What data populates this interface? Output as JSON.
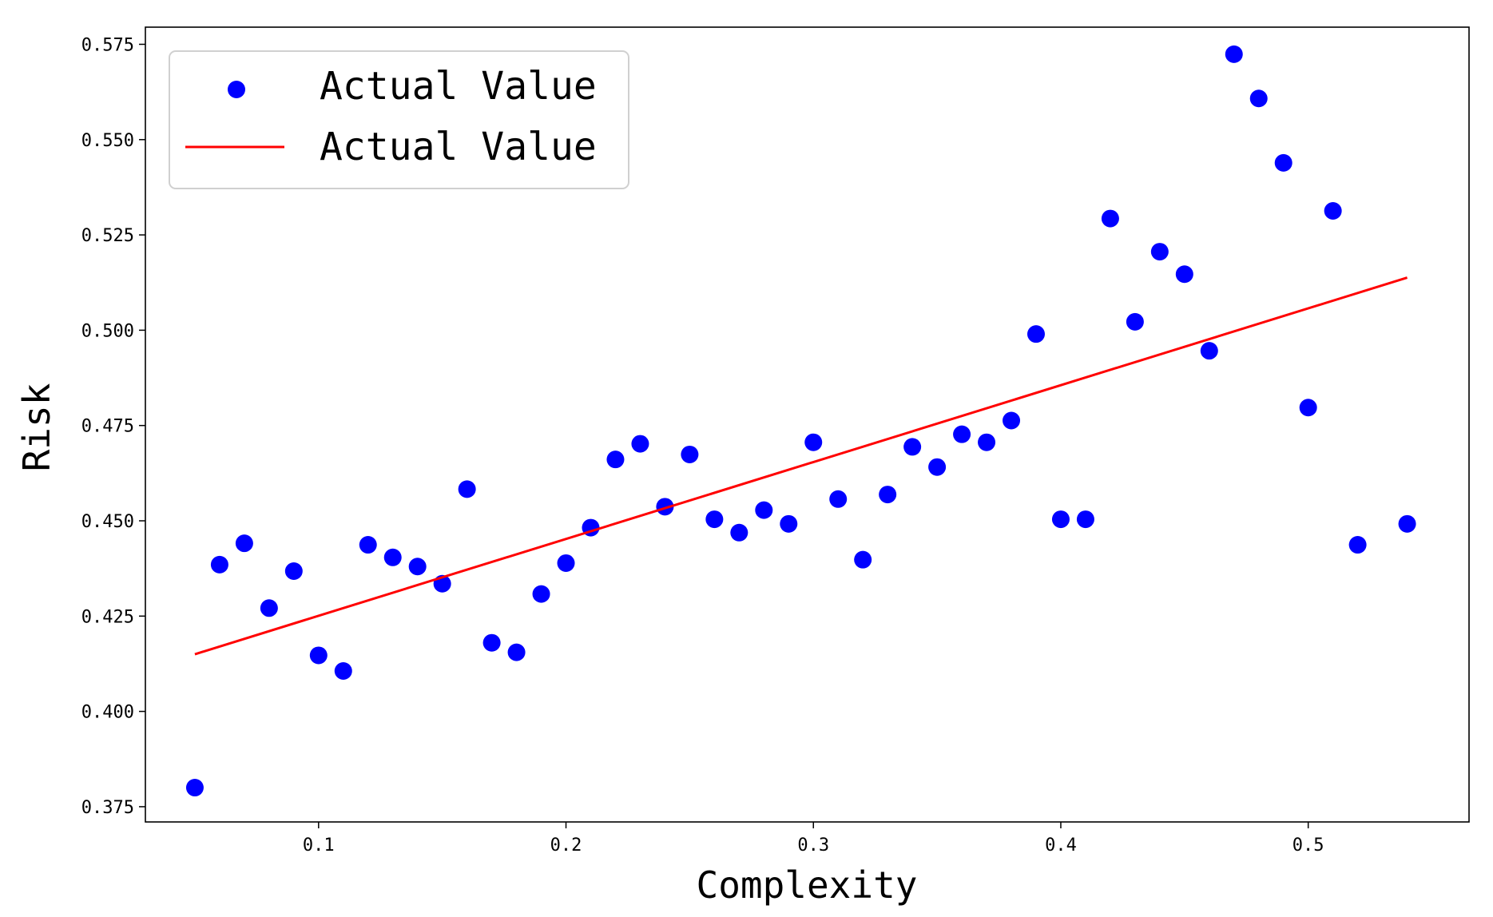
{
  "chart_data": {
    "type": "scatter",
    "xlabel": "Complexity",
    "ylabel": "Risk",
    "xlim": [
      0.03,
      0.565
    ],
    "ylim": [
      0.371,
      0.5795
    ],
    "x_ticks": [
      0.1,
      0.2,
      0.3,
      0.4,
      0.5
    ],
    "x_tick_labels": [
      "0.1",
      "0.2",
      "0.3",
      "0.4",
      "0.5"
    ],
    "y_ticks": [
      0.375,
      0.4,
      0.425,
      0.45,
      0.475,
      0.5,
      0.525,
      0.55,
      0.575
    ],
    "y_tick_labels": [
      "0.375",
      "0.400",
      "0.425",
      "0.450",
      "0.475",
      "0.500",
      "0.525",
      "0.550",
      "0.575"
    ],
    "grid": false,
    "legend_position": "top-left",
    "series": [
      {
        "name": "Actual Value",
        "kind": "scatter",
        "color": "#0000ff",
        "points": [
          [
            0.05,
            0.38
          ],
          [
            0.06,
            0.4385
          ],
          [
            0.07,
            0.4441
          ],
          [
            0.08,
            0.4271
          ],
          [
            0.09,
            0.4368
          ],
          [
            0.1,
            0.4147
          ],
          [
            0.11,
            0.4106
          ],
          [
            0.12,
            0.4437
          ],
          [
            0.13,
            0.4404
          ],
          [
            0.14,
            0.438
          ],
          [
            0.15,
            0.4335
          ],
          [
            0.16,
            0.4583
          ],
          [
            0.17,
            0.418
          ],
          [
            0.18,
            0.4155
          ],
          [
            0.19,
            0.4308
          ],
          [
            0.2,
            0.4389
          ],
          [
            0.21,
            0.4482
          ],
          [
            0.22,
            0.4661
          ],
          [
            0.23,
            0.4702
          ],
          [
            0.24,
            0.4537
          ],
          [
            0.25,
            0.4674
          ],
          [
            0.26,
            0.4504
          ],
          [
            0.27,
            0.4469
          ],
          [
            0.28,
            0.4528
          ],
          [
            0.29,
            0.4492
          ],
          [
            0.3,
            0.4706
          ],
          [
            0.31,
            0.4557
          ],
          [
            0.32,
            0.4398
          ],
          [
            0.33,
            0.4569
          ],
          [
            0.34,
            0.4694
          ],
          [
            0.35,
            0.4641
          ],
          [
            0.36,
            0.4727
          ],
          [
            0.37,
            0.4706
          ],
          [
            0.38,
            0.4763
          ],
          [
            0.39,
            0.499
          ],
          [
            0.4,
            0.4504
          ],
          [
            0.41,
            0.4504
          ],
          [
            0.42,
            0.5293
          ],
          [
            0.43,
            0.5022
          ],
          [
            0.44,
            0.5206
          ],
          [
            0.45,
            0.5147
          ],
          [
            0.46,
            0.4946
          ],
          [
            0.47,
            0.5724
          ],
          [
            0.48,
            0.5608
          ],
          [
            0.49,
            0.5439
          ],
          [
            0.5,
            0.4797
          ],
          [
            0.51,
            0.5313
          ],
          [
            0.52,
            0.4437
          ],
          [
            0.54,
            0.4492
          ]
        ]
      },
      {
        "name": "Actual Value",
        "kind": "line",
        "color": "#ff0000",
        "points": [
          [
            0.05,
            0.415
          ],
          [
            0.54,
            0.5138
          ]
        ]
      }
    ]
  }
}
